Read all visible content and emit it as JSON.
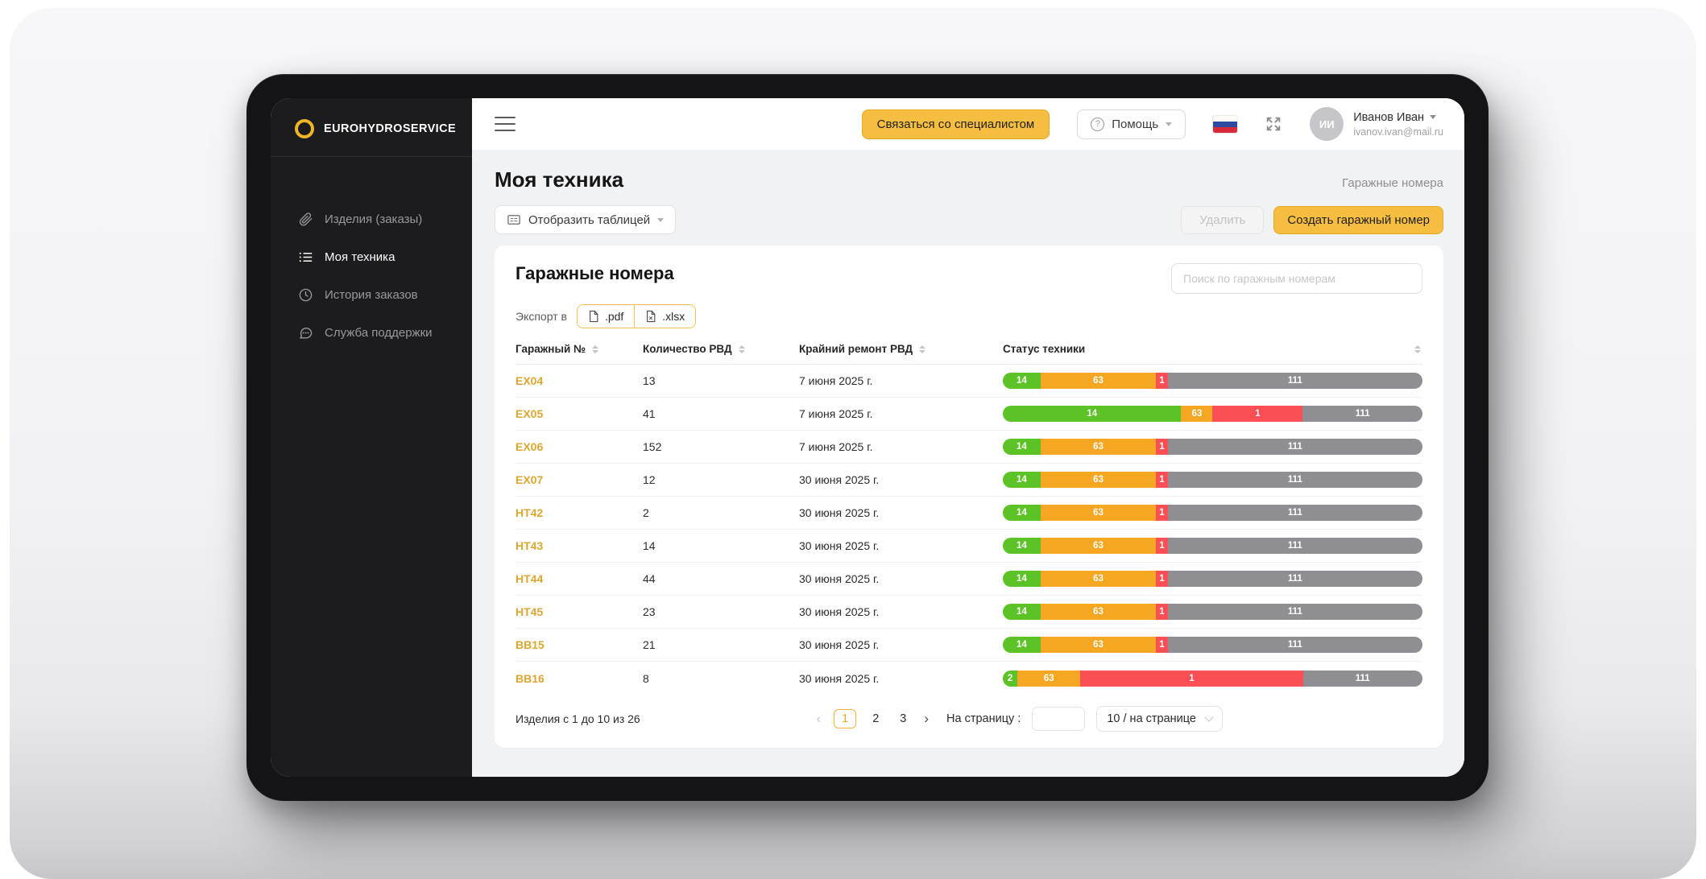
{
  "brand": {
    "name": "EUROHYDROSERVICE"
  },
  "sidebar": {
    "items": [
      {
        "label": "Изделия (заказы)",
        "icon": "paperclip-icon",
        "active": false
      },
      {
        "label": "Моя техника",
        "icon": "list-icon",
        "active": true
      },
      {
        "label": "История заказов",
        "icon": "clock-icon",
        "active": false
      },
      {
        "label": "Служба поддержки",
        "icon": "chat-icon",
        "active": false
      }
    ]
  },
  "header": {
    "contact_button": "Связаться со специалистом",
    "help_button": "Помощь",
    "help_icon": "?",
    "user": {
      "name": "Иванов Иван",
      "email": "ivanov.ivan@mail.ru",
      "initials": "ИИ"
    }
  },
  "page": {
    "title": "Моя техника",
    "breadcrumb": "Гаражные номера",
    "display_table_button": "Отобразить таблицей",
    "delete_button": "Удалить",
    "create_button": "Создать гаражный номер"
  },
  "card": {
    "title": "Гаражные номера",
    "search_placeholder": "Поиск по гаражным номерам",
    "export_label": "Экспорт в",
    "export_pdf": ".pdf",
    "export_xlsx": ".xlsx"
  },
  "table": {
    "columns": [
      "Гаражный №",
      "Количество РВД",
      "Крайний ремонт РВД",
      "Статус техники"
    ],
    "rows": [
      {
        "id": "EX04",
        "qty": "13",
        "date": "7 июня 2025 г.",
        "segments": [
          {
            "label": "14",
            "pct": 9,
            "color": "green"
          },
          {
            "label": "63",
            "pct": 27.5,
            "color": "orange"
          },
          {
            "label": "1",
            "pct": 2.8,
            "color": "red"
          },
          {
            "label": "111",
            "pct": 60.7,
            "color": "gray"
          }
        ]
      },
      {
        "id": "EX05",
        "qty": "41",
        "date": "7 июня 2025 г.",
        "segments": [
          {
            "label": "14",
            "pct": 42.5,
            "color": "green"
          },
          {
            "label": "63",
            "pct": 7.5,
            "color": "orange"
          },
          {
            "label": "1",
            "pct": 21.5,
            "color": "red"
          },
          {
            "label": "111",
            "pct": 28.5,
            "color": "gray"
          }
        ]
      },
      {
        "id": "EX06",
        "qty": "152",
        "date": "7 июня 2025 г.",
        "segments": [
          {
            "label": "14",
            "pct": 9,
            "color": "green"
          },
          {
            "label": "63",
            "pct": 27.5,
            "color": "orange"
          },
          {
            "label": "1",
            "pct": 2.8,
            "color": "red"
          },
          {
            "label": "111",
            "pct": 60.7,
            "color": "gray"
          }
        ]
      },
      {
        "id": "EX07",
        "qty": "12",
        "date": "30 июня 2025 г.",
        "segments": [
          {
            "label": "14",
            "pct": 9,
            "color": "green"
          },
          {
            "label": "63",
            "pct": 27.5,
            "color": "orange"
          },
          {
            "label": "1",
            "pct": 2.8,
            "color": "red"
          },
          {
            "label": "111",
            "pct": 60.7,
            "color": "gray"
          }
        ]
      },
      {
        "id": "HT42",
        "qty": "2",
        "date": "30 июня 2025 г.",
        "segments": [
          {
            "label": "14",
            "pct": 9,
            "color": "green"
          },
          {
            "label": "63",
            "pct": 27.5,
            "color": "orange"
          },
          {
            "label": "1",
            "pct": 2.8,
            "color": "red"
          },
          {
            "label": "111",
            "pct": 60.7,
            "color": "gray"
          }
        ]
      },
      {
        "id": "HT43",
        "qty": "14",
        "date": "30 июня 2025 г.",
        "segments": [
          {
            "label": "14",
            "pct": 9,
            "color": "green"
          },
          {
            "label": "63",
            "pct": 27.5,
            "color": "orange"
          },
          {
            "label": "1",
            "pct": 2.8,
            "color": "red"
          },
          {
            "label": "111",
            "pct": 60.7,
            "color": "gray"
          }
        ]
      },
      {
        "id": "HT44",
        "qty": "44",
        "date": "30 июня 2025 г.",
        "segments": [
          {
            "label": "14",
            "pct": 9,
            "color": "green"
          },
          {
            "label": "63",
            "pct": 27.5,
            "color": "orange"
          },
          {
            "label": "1",
            "pct": 2.8,
            "color": "red"
          },
          {
            "label": "111",
            "pct": 60.7,
            "color": "gray"
          }
        ]
      },
      {
        "id": "HT45",
        "qty": "23",
        "date": "30 июня 2025 г.",
        "segments": [
          {
            "label": "14",
            "pct": 9,
            "color": "green"
          },
          {
            "label": "63",
            "pct": 27.5,
            "color": "orange"
          },
          {
            "label": "1",
            "pct": 2.8,
            "color": "red"
          },
          {
            "label": "111",
            "pct": 60.7,
            "color": "gray"
          }
        ]
      },
      {
        "id": "BB15",
        "qty": "21",
        "date": "30 июня 2025 г.",
        "segments": [
          {
            "label": "14",
            "pct": 9,
            "color": "green"
          },
          {
            "label": "63",
            "pct": 27.5,
            "color": "orange"
          },
          {
            "label": "1",
            "pct": 2.8,
            "color": "red"
          },
          {
            "label": "111",
            "pct": 60.7,
            "color": "gray"
          }
        ]
      },
      {
        "id": "BB16",
        "qty": "8",
        "date": "30 июня 2025 г.",
        "segments": [
          {
            "label": "2",
            "pct": 3.5,
            "color": "green"
          },
          {
            "label": "63",
            "pct": 15,
            "color": "orange"
          },
          {
            "label": "1",
            "pct": 53,
            "color": "red"
          },
          {
            "label": "111",
            "pct": 28.5,
            "color": "gray"
          }
        ]
      }
    ]
  },
  "footer": {
    "summary": "Изделия с 1 до 10 из 26",
    "prev": "‹",
    "next": "›",
    "pages": [
      "1",
      "2",
      "3"
    ],
    "active_page": "1",
    "per_page_label": "На страницу :",
    "per_page_value": "10 / на странице"
  },
  "colors": {
    "green": "#5cc326",
    "orange": "#f6a722",
    "red": "#fb4e55",
    "gray": "#8f8f93",
    "accent": "#f6be40"
  }
}
